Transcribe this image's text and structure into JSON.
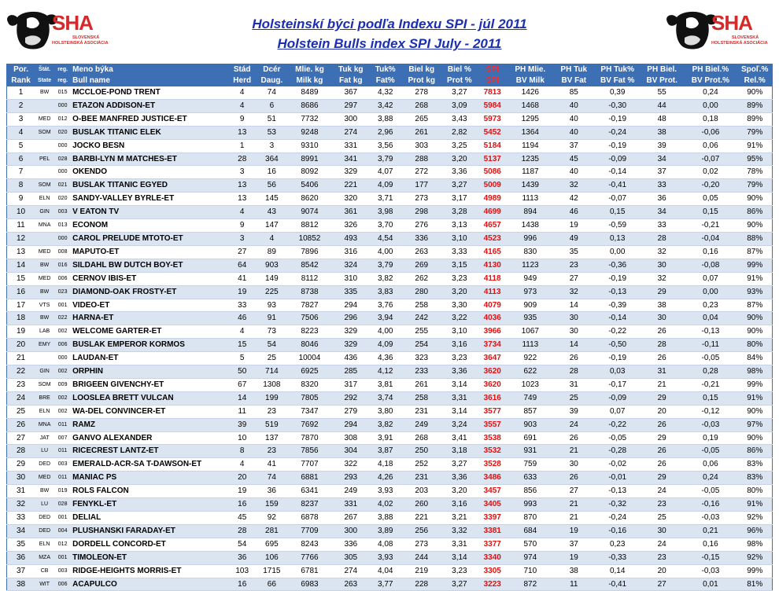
{
  "logo": {
    "text": "SHA",
    "sub1": "SLOVENSKÁ",
    "sub2": "HOLSTEINSKÁ ASOCIÁCIA",
    "icon": "holstein-cow-head"
  },
  "title_sk": "Holsteinskí býci podľa Indexu SPI - júl 2011",
  "title_en": "Holstein Bulls index SPI July - 2011",
  "header_sk": [
    "Por.",
    "Štát.",
    "reg.",
    "Meno býka",
    "Stád",
    "Dcér",
    "Mlie. kg",
    "Tuk kg",
    "Tuk%",
    "Biel kg",
    "Biel %",
    "SPI",
    "PH Mlie.",
    "PH Tuk",
    "PH Tuk%",
    "PH Biel.",
    "PH Biel.%",
    "Spoľ.%"
  ],
  "header_en": [
    "Rank",
    "State",
    "reg.",
    "Bull name",
    "Herd",
    "Daug.",
    "Milk kg",
    "Fat kg",
    "Fat%",
    "Prot kg",
    "Prot %",
    "SPI",
    "BV Milk",
    "BV Fat",
    "BV Fat %",
    "BV Prot.",
    "BV Prot.%",
    "Rel.%"
  ],
  "rows": [
    [
      "1",
      "BW",
      "015",
      "MCCLOE-POND TRENT",
      "4",
      "74",
      "8489",
      "367",
      "4,32",
      "278",
      "3,27",
      "7813",
      "1426",
      "85",
      "0,39",
      "55",
      "0,24",
      "90%"
    ],
    [
      "2",
      "",
      "000",
      "ETAZON ADDISON-ET",
      "4",
      "6",
      "8686",
      "297",
      "3,42",
      "268",
      "3,09",
      "5984",
      "1468",
      "40",
      "-0,30",
      "44",
      "0,00",
      "89%"
    ],
    [
      "3",
      "MED",
      "012",
      "O-BEE MANFRED JUSTICE-ET",
      "9",
      "51",
      "7732",
      "300",
      "3,88",
      "265",
      "3,43",
      "5973",
      "1295",
      "40",
      "-0,19",
      "48",
      "0,18",
      "89%"
    ],
    [
      "4",
      "SOM",
      "020",
      "BUSLAK TITANIC ELEK",
      "13",
      "53",
      "9248",
      "274",
      "2,96",
      "261",
      "2,82",
      "5452",
      "1364",
      "40",
      "-0,24",
      "38",
      "-0,06",
      "79%"
    ],
    [
      "5",
      "",
      "000",
      "JOCKO BESN",
      "1",
      "3",
      "9310",
      "331",
      "3,56",
      "303",
      "3,25",
      "5184",
      "1194",
      "37",
      "-0,19",
      "39",
      "0,06",
      "91%"
    ],
    [
      "6",
      "PEL",
      "028",
      "BARBI-LYN M MATCHES-ET",
      "28",
      "364",
      "8991",
      "341",
      "3,79",
      "288",
      "3,20",
      "5137",
      "1235",
      "45",
      "-0,09",
      "34",
      "-0,07",
      "95%"
    ],
    [
      "7",
      "",
      "000",
      "OKENDO",
      "3",
      "16",
      "8092",
      "329",
      "4,07",
      "272",
      "3,36",
      "5086",
      "1187",
      "40",
      "-0,14",
      "37",
      "0,02",
      "78%"
    ],
    [
      "8",
      "SOM",
      "021",
      "BUSLAK TITANIC EGYED",
      "13",
      "56",
      "5406",
      "221",
      "4,09",
      "177",
      "3,27",
      "5009",
      "1439",
      "32",
      "-0,41",
      "33",
      "-0,20",
      "79%"
    ],
    [
      "9",
      "ELN",
      "020",
      "SANDY-VALLEY BYRLE-ET",
      "13",
      "145",
      "8620",
      "320",
      "3,71",
      "273",
      "3,17",
      "4989",
      "1113",
      "42",
      "-0,07",
      "36",
      "0,05",
      "90%"
    ],
    [
      "10",
      "GIN",
      "003",
      "V EATON TV",
      "4",
      "43",
      "9074",
      "361",
      "3,98",
      "298",
      "3,28",
      "4699",
      "894",
      "46",
      "0,15",
      "34",
      "0,15",
      "86%"
    ],
    [
      "11",
      "MNA",
      "013",
      "ECONOM",
      "9",
      "147",
      "8812",
      "326",
      "3,70",
      "276",
      "3,13",
      "4657",
      "1438",
      "19",
      "-0,59",
      "33",
      "-0,21",
      "90%"
    ],
    [
      "12",
      "",
      "000",
      "CAROL PRELUDE MTOTO-ET",
      "3",
      "4",
      "10852",
      "493",
      "4,54",
      "336",
      "3,10",
      "4523",
      "996",
      "49",
      "0,13",
      "28",
      "-0,04",
      "88%"
    ],
    [
      "13",
      "MED",
      "008",
      "MAPUTO-ET",
      "27",
      "89",
      "7896",
      "316",
      "4,00",
      "263",
      "3,33",
      "4165",
      "830",
      "35",
      "0,00",
      "32",
      "0,16",
      "87%"
    ],
    [
      "14",
      "BW",
      "016",
      "SILDAHL BW DUTCH BOY-ET",
      "64",
      "903",
      "8542",
      "324",
      "3,79",
      "269",
      "3,15",
      "4130",
      "1123",
      "23",
      "-0,36",
      "30",
      "-0,08",
      "99%"
    ],
    [
      "15",
      "MED",
      "006",
      "CERNOV IBIS-ET",
      "41",
      "149",
      "8112",
      "310",
      "3,82",
      "262",
      "3,23",
      "4118",
      "949",
      "27",
      "-0,19",
      "32",
      "0,07",
      "91%"
    ],
    [
      "16",
      "BW",
      "023",
      "DIAMOND-OAK FROSTY-ET",
      "19",
      "225",
      "8738",
      "335",
      "3,83",
      "280",
      "3,20",
      "4113",
      "973",
      "32",
      "-0,13",
      "29",
      "0,00",
      "93%"
    ],
    [
      "17",
      "VTS",
      "001",
      "VIDEO-ET",
      "33",
      "93",
      "7827",
      "294",
      "3,76",
      "258",
      "3,30",
      "4079",
      "909",
      "14",
      "-0,39",
      "38",
      "0,23",
      "87%"
    ],
    [
      "18",
      "BW",
      "022",
      "HARNA-ET",
      "46",
      "91",
      "7506",
      "296",
      "3,94",
      "242",
      "3,22",
      "4036",
      "935",
      "30",
      "-0,14",
      "30",
      "0,04",
      "90%"
    ],
    [
      "19",
      "LAB",
      "002",
      "WELCOME GARTER-ET",
      "4",
      "73",
      "8223",
      "329",
      "4,00",
      "255",
      "3,10",
      "3966",
      "1067",
      "30",
      "-0,22",
      "26",
      "-0,13",
      "90%"
    ],
    [
      "20",
      "EMY",
      "006",
      "BUSLAK EMPEROR KORMOS",
      "15",
      "54",
      "8046",
      "329",
      "4,09",
      "254",
      "3,16",
      "3734",
      "1113",
      "14",
      "-0,50",
      "28",
      "-0,11",
      "80%"
    ],
    [
      "21",
      "",
      "000",
      "LAUDAN-ET",
      "5",
      "25",
      "10004",
      "436",
      "4,36",
      "323",
      "3,23",
      "3647",
      "922",
      "26",
      "-0,19",
      "26",
      "-0,05",
      "84%"
    ],
    [
      "22",
      "GIN",
      "002",
      "ORPHIN",
      "50",
      "714",
      "6925",
      "285",
      "4,12",
      "233",
      "3,36",
      "3620",
      "622",
      "28",
      "0,03",
      "31",
      "0,28",
      "98%"
    ],
    [
      "23",
      "SOM",
      "009",
      "BRIGEEN GIVENCHY-ET",
      "67",
      "1308",
      "8320",
      "317",
      "3,81",
      "261",
      "3,14",
      "3620",
      "1023",
      "31",
      "-0,17",
      "21",
      "-0,21",
      "99%"
    ],
    [
      "24",
      "BRE",
      "002",
      "LOOSLEA BRETT VULCAN",
      "14",
      "199",
      "7805",
      "292",
      "3,74",
      "258",
      "3,31",
      "3616",
      "749",
      "25",
      "-0,09",
      "29",
      "0,15",
      "91%"
    ],
    [
      "25",
      "ELN",
      "002",
      "WA-DEL CONVINCER-ET",
      "11",
      "23",
      "7347",
      "279",
      "3,80",
      "231",
      "3,14",
      "3577",
      "857",
      "39",
      "0,07",
      "20",
      "-0,12",
      "90%"
    ],
    [
      "26",
      "MNA",
      "011",
      "RAMZ",
      "39",
      "519",
      "7692",
      "294",
      "3,82",
      "249",
      "3,24",
      "3557",
      "903",
      "24",
      "-0,22",
      "26",
      "-0,03",
      "97%"
    ],
    [
      "27",
      "JAT",
      "007",
      "GANVO ALEXANDER",
      "10",
      "137",
      "7870",
      "308",
      "3,91",
      "268",
      "3,41",
      "3538",
      "691",
      "26",
      "-0,05",
      "29",
      "0,19",
      "90%"
    ],
    [
      "28",
      "LU",
      "011",
      "RICECREST LANTZ-ET",
      "8",
      "23",
      "7856",
      "304",
      "3,87",
      "250",
      "3,18",
      "3532",
      "931",
      "21",
      "-0,28",
      "26",
      "-0,05",
      "86%"
    ],
    [
      "29",
      "DED",
      "003",
      "EMERALD-ACR-SA T-DAWSON-ET",
      "4",
      "41",
      "7707",
      "322",
      "4,18",
      "252",
      "3,27",
      "3528",
      "759",
      "30",
      "-0,02",
      "26",
      "0,06",
      "83%"
    ],
    [
      "30",
      "MED",
      "011",
      "MANIAC PS",
      "20",
      "74",
      "6881",
      "293",
      "4,26",
      "231",
      "3,36",
      "3486",
      "633",
      "26",
      "-0,01",
      "29",
      "0,24",
      "83%"
    ],
    [
      "31",
      "BW",
      "019",
      "ROLS FALCON",
      "19",
      "36",
      "6341",
      "249",
      "3,93",
      "203",
      "3,20",
      "3457",
      "856",
      "27",
      "-0,13",
      "24",
      "-0,05",
      "80%"
    ],
    [
      "32",
      "LU",
      "028",
      "FENYKL-ET",
      "16",
      "159",
      "8237",
      "331",
      "4,02",
      "260",
      "3,16",
      "3405",
      "993",
      "21",
      "-0,32",
      "23",
      "-0,16",
      "91%"
    ],
    [
      "33",
      "DED",
      "001",
      "DELIAL",
      "45",
      "92",
      "6878",
      "267",
      "3,88",
      "221",
      "3,21",
      "3397",
      "870",
      "21",
      "-0,24",
      "25",
      "-0,03",
      "92%"
    ],
    [
      "34",
      "DED",
      "004",
      "PLUSHANSKI FARADAY-ET",
      "28",
      "281",
      "7709",
      "300",
      "3,89",
      "256",
      "3,32",
      "3381",
      "684",
      "19",
      "-0,16",
      "30",
      "0,21",
      "96%"
    ],
    [
      "35",
      "ELN",
      "012",
      "DORDELL CONCORD-ET",
      "54",
      "695",
      "8243",
      "336",
      "4,08",
      "273",
      "3,31",
      "3377",
      "570",
      "37",
      "0,23",
      "24",
      "0,16",
      "98%"
    ],
    [
      "36",
      "MZA",
      "001",
      "TIMOLEON-ET",
      "36",
      "106",
      "7766",
      "305",
      "3,93",
      "244",
      "3,14",
      "3340",
      "974",
      "19",
      "-0,33",
      "23",
      "-0,15",
      "92%"
    ],
    [
      "37",
      "CB",
      "003",
      "RIDGE-HEIGHTS MORRIS-ET",
      "103",
      "1715",
      "6781",
      "274",
      "4,04",
      "219",
      "3,23",
      "3305",
      "710",
      "38",
      "0,14",
      "20",
      "-0,03",
      "99%"
    ],
    [
      "38",
      "WIT",
      "006",
      "ACAPULCO",
      "16",
      "66",
      "6983",
      "263",
      "3,77",
      "228",
      "3,27",
      "3223",
      "872",
      "11",
      "-0,41",
      "27",
      "0,01",
      "81%"
    ]
  ],
  "colors": {
    "header": "#3d6fb5",
    "title": "#1b2fb0",
    "spi": "#e01010",
    "stripe": "#dbe5f1",
    "logo": "#d42a2a"
  }
}
